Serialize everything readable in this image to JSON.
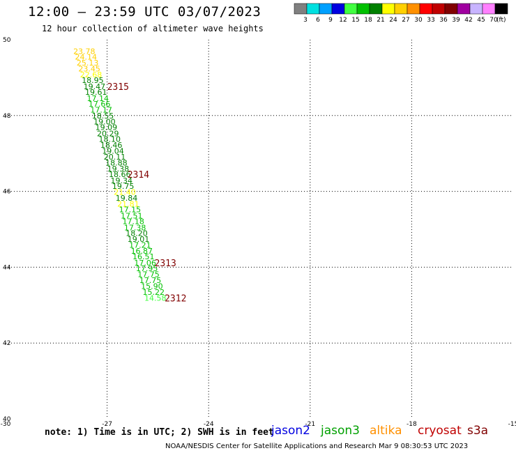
{
  "header": {
    "title": "12:00 – 23:59 UTC 03/07/2023",
    "subtitle": "12 hour collection of altimeter wave heights"
  },
  "legend": {
    "unit": "(ft)",
    "bins": [
      {
        "label": "3",
        "color": "#808080"
      },
      {
        "label": "6",
        "color": "#00e0e0"
      },
      {
        "label": "9",
        "color": "#00a0ff"
      },
      {
        "label": "12",
        "color": "#0000e0"
      },
      {
        "label": "15",
        "color": "#40ff40"
      },
      {
        "label": "18",
        "color": "#00c000"
      },
      {
        "label": "21",
        "color": "#008000"
      },
      {
        "label": "24",
        "color": "#ffff00"
      },
      {
        "label": "27",
        "color": "#ffd000"
      },
      {
        "label": "30",
        "color": "#ff9000"
      },
      {
        "label": "33",
        "color": "#ff0000"
      },
      {
        "label": "36",
        "color": "#c00000"
      },
      {
        "label": "39",
        "color": "#800000"
      },
      {
        "label": "42",
        "color": "#a000a0"
      },
      {
        "label": "45",
        "color": "#c8b4ff"
      },
      {
        "label": "70",
        "color": "#ff80ff"
      },
      {
        "label": "",
        "color": "#000000"
      }
    ]
  },
  "chart_data": {
    "type": "scatter",
    "title": "12:00 – 23:59 UTC 03/07/2023",
    "subtitle": "12 hour collection of altimeter wave heights",
    "xlim": [
      -30,
      -15
    ],
    "ylim": [
      40,
      50
    ],
    "xticks": [
      "-30",
      "-27",
      "-24",
      "-21",
      "-18",
      "-15"
    ],
    "yticks": [
      "40",
      "42",
      "44",
      "46",
      "48",
      "50"
    ],
    "grid": true,
    "points": [
      {
        "x": -28.0,
        "y": 49.7,
        "v": "23.78",
        "color": "#ffd000"
      },
      {
        "x": -27.95,
        "y": 49.55,
        "v": "24.14",
        "color": "#ffd000"
      },
      {
        "x": -27.9,
        "y": 49.39,
        "v": "25.13",
        "color": "#ffd000"
      },
      {
        "x": -27.85,
        "y": 49.24,
        "v": "23.45",
        "color": "#ffd000"
      },
      {
        "x": -27.8,
        "y": 49.08,
        "v": "22.68",
        "color": "#ffff00"
      },
      {
        "x": -27.75,
        "y": 48.93,
        "v": "18.95",
        "color": "#008000"
      },
      {
        "x": -27.7,
        "y": 48.77,
        "v": "19.47",
        "color": "#008000"
      },
      {
        "x": -27.65,
        "y": 48.62,
        "v": "19.61",
        "color": "#008000"
      },
      {
        "x": -27.6,
        "y": 48.46,
        "v": "17.14",
        "color": "#00c000"
      },
      {
        "x": -27.55,
        "y": 48.31,
        "v": "17.66",
        "color": "#00c000"
      },
      {
        "x": -27.5,
        "y": 48.15,
        "v": "17.17",
        "color": "#00c000"
      },
      {
        "x": -27.45,
        "y": 48.0,
        "v": "18.55",
        "color": "#008000"
      },
      {
        "x": -27.4,
        "y": 47.84,
        "v": "19.00",
        "color": "#008000"
      },
      {
        "x": -27.35,
        "y": 47.69,
        "v": "19.09",
        "color": "#008000"
      },
      {
        "x": -27.3,
        "y": 47.53,
        "v": "20.29",
        "color": "#008000"
      },
      {
        "x": -27.25,
        "y": 47.38,
        "v": "18.10",
        "color": "#008000"
      },
      {
        "x": -27.2,
        "y": 47.22,
        "v": "18.46",
        "color": "#008000"
      },
      {
        "x": -27.15,
        "y": 47.07,
        "v": "19.04",
        "color": "#008000"
      },
      {
        "x": -27.1,
        "y": 46.91,
        "v": "20.11",
        "color": "#008000"
      },
      {
        "x": -27.05,
        "y": 46.76,
        "v": "18.88",
        "color": "#008000"
      },
      {
        "x": -27.0,
        "y": 46.6,
        "v": "19.38",
        "color": "#008000"
      },
      {
        "x": -26.95,
        "y": 46.45,
        "v": "18.66",
        "color": "#008000"
      },
      {
        "x": -26.9,
        "y": 46.29,
        "v": "19.34",
        "color": "#008000"
      },
      {
        "x": -26.85,
        "y": 46.14,
        "v": "19.75",
        "color": "#008000"
      },
      {
        "x": -26.8,
        "y": 45.98,
        "v": "21.40",
        "color": "#ffff00"
      },
      {
        "x": -26.75,
        "y": 45.83,
        "v": "19.84",
        "color": "#008000"
      },
      {
        "x": -26.7,
        "y": 45.67,
        "v": "21.81",
        "color": "#ffff00"
      },
      {
        "x": -26.65,
        "y": 45.52,
        "v": "17.15",
        "color": "#00c000"
      },
      {
        "x": -26.6,
        "y": 45.36,
        "v": "17.51",
        "color": "#00c000"
      },
      {
        "x": -26.55,
        "y": 45.21,
        "v": "17.18",
        "color": "#00c000"
      },
      {
        "x": -26.5,
        "y": 45.05,
        "v": "17.38",
        "color": "#00c000"
      },
      {
        "x": -26.45,
        "y": 44.9,
        "v": "18.20",
        "color": "#008000"
      },
      {
        "x": -26.4,
        "y": 44.74,
        "v": "19.01",
        "color": "#008000"
      },
      {
        "x": -26.35,
        "y": 44.59,
        "v": "17.21",
        "color": "#00c000"
      },
      {
        "x": -26.3,
        "y": 44.43,
        "v": "16.87",
        "color": "#00c000"
      },
      {
        "x": -26.25,
        "y": 44.28,
        "v": "16.51",
        "color": "#00c000"
      },
      {
        "x": -26.2,
        "y": 44.12,
        "v": "17.06",
        "color": "#00c000"
      },
      {
        "x": -26.15,
        "y": 43.97,
        "v": "17.95",
        "color": "#00c000"
      },
      {
        "x": -26.1,
        "y": 43.81,
        "v": "17.75",
        "color": "#00c000"
      },
      {
        "x": -26.05,
        "y": 43.66,
        "v": "17.75",
        "color": "#00c000"
      },
      {
        "x": -26.0,
        "y": 43.5,
        "v": "15.90",
        "color": "#00c000"
      },
      {
        "x": -25.95,
        "y": 43.35,
        "v": "15.22",
        "color": "#00c000"
      },
      {
        "x": -25.9,
        "y": 43.19,
        "v": "14.58",
        "color": "#40ff40"
      }
    ],
    "time_labels": [
      {
        "text": "2315",
        "x": -27.0,
        "y": 48.77
      },
      {
        "text": "2314",
        "x": -26.4,
        "y": 46.45
      },
      {
        "text": "2313",
        "x": -25.6,
        "y": 44.12
      },
      {
        "text": "2312",
        "x": -25.3,
        "y": 43.19
      }
    ]
  },
  "footer": {
    "note": "note: 1) Time is in UTC; 2) SWH is in feet",
    "credit": "NOAA/NESDIS Center for Satellite Applications and Research   Mar  9 08:30:53 UTC 2023",
    "satellites": [
      {
        "name": "jason2",
        "color": "#0000e0"
      },
      {
        "name": "jason3",
        "color": "#00a000"
      },
      {
        "name": "altika",
        "color": "#ff9000"
      },
      {
        "name": "cryosat",
        "color": "#c00000"
      },
      {
        "name": "s3a",
        "color": "#800000"
      }
    ]
  }
}
